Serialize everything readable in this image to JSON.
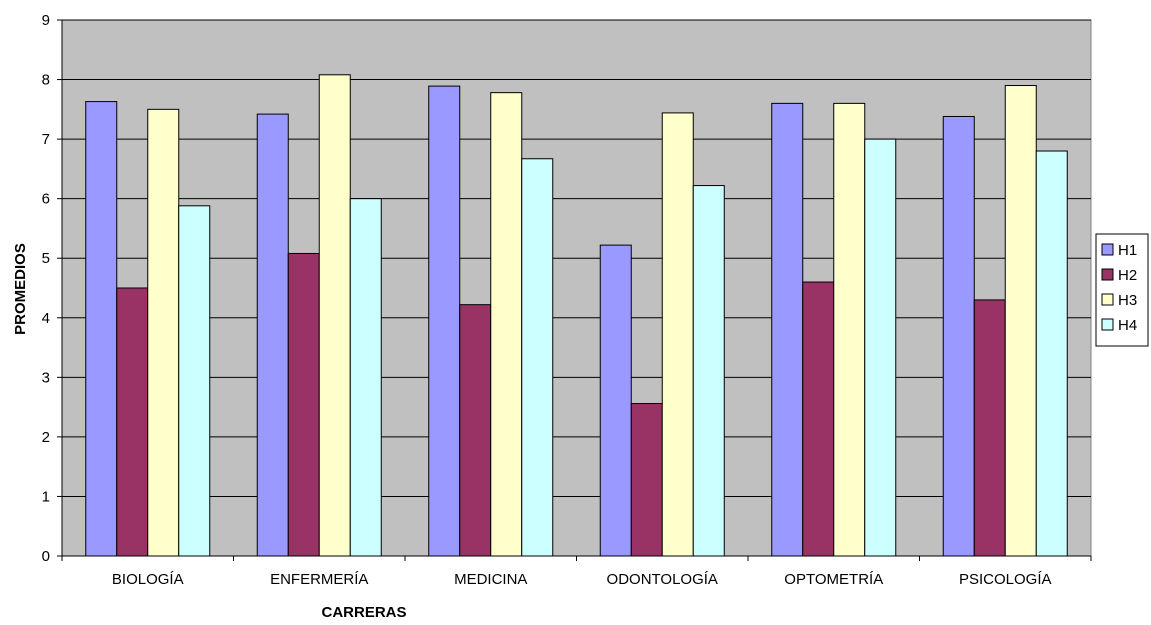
{
  "chart_data": {
    "type": "bar",
    "title": "",
    "xlabel": "CARRERAS",
    "ylabel": "PROMEDIOS",
    "ylim": [
      0,
      9
    ],
    "yticks": [
      0,
      1,
      2,
      3,
      4,
      5,
      6,
      7,
      8,
      9
    ],
    "grid": true,
    "legend_position": "right",
    "plot_background": "#c0c0c0",
    "categories": [
      "BIOLOGÍA",
      "ENFERMERÍA",
      "MEDICINA",
      "ODONTOLOGÍA",
      "OPTOMETRÍA",
      "PSICOLOGÍA"
    ],
    "series": [
      {
        "name": "H1",
        "color": "#9999ff",
        "values": [
          7.63,
          7.42,
          7.89,
          5.22,
          7.6,
          7.38
        ]
      },
      {
        "name": "H2",
        "color": "#993366",
        "values": [
          4.5,
          5.08,
          4.22,
          2.56,
          4.6,
          4.3
        ]
      },
      {
        "name": "H3",
        "color": "#ffffcc",
        "values": [
          7.5,
          8.08,
          7.78,
          7.44,
          7.6,
          7.9
        ]
      },
      {
        "name": "H4",
        "color": "#ccffff",
        "values": [
          5.88,
          6.0,
          6.67,
          6.22,
          7.0,
          6.8
        ]
      }
    ]
  }
}
